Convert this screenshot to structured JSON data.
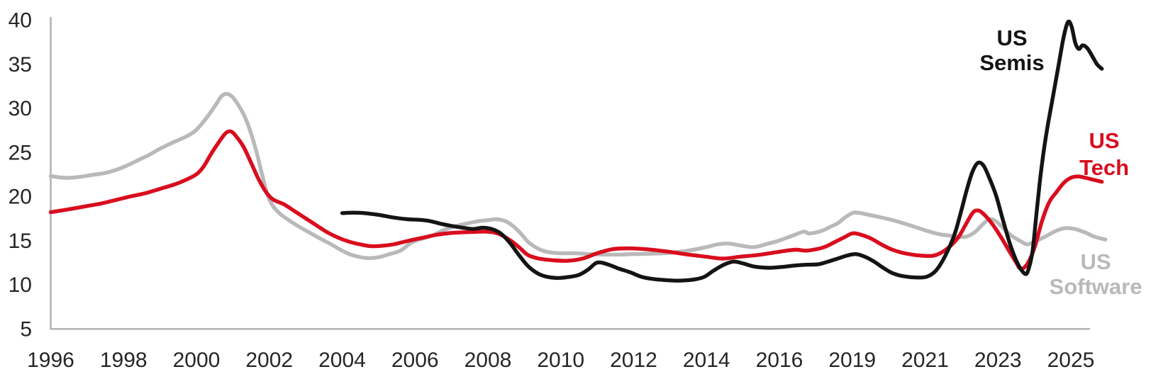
{
  "chart_data": {
    "type": "line",
    "title": "",
    "grid": false,
    "background_color": "#ffffff",
    "axis_color": "#a8a8a8",
    "tick_label_color": "#262626",
    "legend_position": "end-of-line inline labels",
    "x_axis": {
      "tick_labels": [
        "1996",
        "1998",
        "2000",
        "2002",
        "2004",
        "2006",
        "2008",
        "2010",
        "2012",
        "2014",
        "2016",
        "2019",
        "2021",
        "2023",
        "2025"
      ]
    },
    "y_axis": {
      "ticks": [
        40,
        35,
        30,
        25,
        20,
        15,
        10,
        5
      ],
      "min": 5,
      "max": 40.3
    },
    "series": [
      {
        "name": "US Software",
        "label_lines": [
          "US",
          "Software"
        ],
        "color": "#b9b9b9",
        "points": [
          [
            1996.0,
            22.3
          ],
          [
            1996.25,
            22.15
          ],
          [
            1996.5,
            22.1
          ],
          [
            1996.8,
            22.2
          ],
          [
            1997.1,
            22.4
          ],
          [
            1997.5,
            22.65
          ],
          [
            1997.8,
            23.0
          ],
          [
            1998.1,
            23.5
          ],
          [
            1998.4,
            24.1
          ],
          [
            1998.7,
            24.7
          ],
          [
            1999.0,
            25.4
          ],
          [
            1999.3,
            26.0
          ],
          [
            1999.6,
            26.55
          ],
          [
            1999.8,
            26.95
          ],
          [
            2000.0,
            27.55
          ],
          [
            2000.2,
            28.5
          ],
          [
            2000.4,
            29.6
          ],
          [
            2000.55,
            30.5
          ],
          [
            2000.7,
            31.4
          ],
          [
            2000.85,
            31.6
          ],
          [
            2001.0,
            31.2
          ],
          [
            2001.2,
            30.0
          ],
          [
            2001.35,
            28.8
          ],
          [
            2001.5,
            27.1
          ],
          [
            2001.65,
            25.0
          ],
          [
            2001.8,
            22.5
          ],
          [
            2001.95,
            20.15
          ],
          [
            2002.1,
            18.9
          ],
          [
            2002.3,
            18.0
          ],
          [
            2002.5,
            17.4
          ],
          [
            2002.8,
            16.6
          ],
          [
            2003.1,
            15.9
          ],
          [
            2003.4,
            15.2
          ],
          [
            2003.7,
            14.55
          ],
          [
            2003.95,
            13.95
          ],
          [
            2004.2,
            13.45
          ],
          [
            2004.45,
            13.15
          ],
          [
            2004.7,
            13.0
          ],
          [
            2005.0,
            13.1
          ],
          [
            2005.3,
            13.45
          ],
          [
            2005.6,
            13.85
          ],
          [
            2005.9,
            14.75
          ],
          [
            2006.2,
            15.2
          ],
          [
            2006.5,
            15.6
          ],
          [
            2006.8,
            16.2
          ],
          [
            2007.1,
            16.6
          ],
          [
            2007.4,
            16.9
          ],
          [
            2007.7,
            17.15
          ],
          [
            2008.0,
            17.3
          ],
          [
            2008.25,
            17.4
          ],
          [
            2008.5,
            17.15
          ],
          [
            2008.7,
            16.6
          ],
          [
            2008.9,
            15.8
          ],
          [
            2009.1,
            14.85
          ],
          [
            2009.3,
            14.25
          ],
          [
            2009.5,
            13.85
          ],
          [
            2009.7,
            13.65
          ],
          [
            2010.0,
            13.55
          ],
          [
            2010.4,
            13.55
          ],
          [
            2010.8,
            13.45
          ],
          [
            2011.2,
            13.4
          ],
          [
            2011.6,
            13.4
          ],
          [
            2012.0,
            13.45
          ],
          [
            2012.5,
            13.5
          ],
          [
            2013.0,
            13.6
          ],
          [
            2013.5,
            13.85
          ],
          [
            2014.0,
            14.25
          ],
          [
            2014.3,
            14.55
          ],
          [
            2014.6,
            14.65
          ],
          [
            2014.9,
            14.45
          ],
          [
            2015.3,
            14.25
          ],
          [
            2015.7,
            14.65
          ],
          [
            2016.0,
            15.0
          ],
          [
            2016.5,
            15.5
          ],
          [
            2017.0,
            16.0
          ],
          [
            2017.2,
            15.8
          ],
          [
            2017.5,
            15.9
          ],
          [
            2017.8,
            16.15
          ],
          [
            2018.1,
            16.55
          ],
          [
            2018.4,
            16.95
          ],
          [
            2018.7,
            17.6
          ],
          [
            2019.0,
            18.1
          ],
          [
            2019.15,
            18.15
          ],
          [
            2019.4,
            17.95
          ],
          [
            2019.8,
            17.6
          ],
          [
            2020.2,
            17.2
          ],
          [
            2020.6,
            16.7
          ],
          [
            2021.0,
            16.15
          ],
          [
            2021.4,
            15.7
          ],
          [
            2021.8,
            15.5
          ],
          [
            2022.1,
            15.4
          ],
          [
            2022.35,
            15.9
          ],
          [
            2022.6,
            16.9
          ],
          [
            2022.75,
            17.4
          ],
          [
            2022.9,
            17.3
          ],
          [
            2023.1,
            16.6
          ],
          [
            2023.35,
            15.6
          ],
          [
            2023.65,
            14.85
          ],
          [
            2023.8,
            14.55
          ],
          [
            2024.0,
            14.85
          ],
          [
            2024.3,
            15.45
          ],
          [
            2024.6,
            16.1
          ],
          [
            2024.85,
            16.4
          ],
          [
            2025.1,
            16.3
          ],
          [
            2025.4,
            15.9
          ],
          [
            2025.6,
            15.5
          ],
          [
            2025.8,
            15.25
          ],
          [
            2025.95,
            15.1
          ]
        ]
      },
      {
        "name": "US Tech",
        "label_lines": [
          "US",
          "Tech"
        ],
        "color": "#d90d1e",
        "points": [
          [
            1996.0,
            18.2
          ],
          [
            1996.3,
            18.4
          ],
          [
            1996.6,
            18.6
          ],
          [
            1997.0,
            18.9
          ],
          [
            1997.4,
            19.2
          ],
          [
            1997.8,
            19.6
          ],
          [
            1998.2,
            20.0
          ],
          [
            1998.6,
            20.35
          ],
          [
            1999.0,
            20.85
          ],
          [
            1999.4,
            21.35
          ],
          [
            1999.7,
            21.85
          ],
          [
            2000.0,
            22.5
          ],
          [
            2000.2,
            23.4
          ],
          [
            2000.4,
            24.8
          ],
          [
            2000.6,
            26.05
          ],
          [
            2000.8,
            27.15
          ],
          [
            2000.95,
            27.35
          ],
          [
            2001.1,
            26.75
          ],
          [
            2001.3,
            25.55
          ],
          [
            2001.5,
            23.8
          ],
          [
            2001.7,
            22.0
          ],
          [
            2001.9,
            20.55
          ],
          [
            2002.1,
            19.65
          ],
          [
            2002.4,
            19.1
          ],
          [
            2002.7,
            18.3
          ],
          [
            2003.0,
            17.5
          ],
          [
            2003.3,
            16.7
          ],
          [
            2003.6,
            15.9
          ],
          [
            2003.9,
            15.3
          ],
          [
            2004.2,
            14.85
          ],
          [
            2004.5,
            14.55
          ],
          [
            2004.8,
            14.35
          ],
          [
            2005.1,
            14.4
          ],
          [
            2005.4,
            14.55
          ],
          [
            2005.8,
            14.95
          ],
          [
            2006.2,
            15.3
          ],
          [
            2006.6,
            15.65
          ],
          [
            2007.0,
            15.85
          ],
          [
            2007.5,
            15.95
          ],
          [
            2008.0,
            16.0
          ],
          [
            2008.3,
            15.75
          ],
          [
            2008.6,
            15.05
          ],
          [
            2008.85,
            14.25
          ],
          [
            2009.1,
            13.35
          ],
          [
            2009.4,
            12.95
          ],
          [
            2009.8,
            12.75
          ],
          [
            2010.2,
            12.7
          ],
          [
            2010.6,
            12.95
          ],
          [
            2011.0,
            13.55
          ],
          [
            2011.4,
            14.0
          ],
          [
            2011.8,
            14.1
          ],
          [
            2012.2,
            14.05
          ],
          [
            2012.6,
            13.9
          ],
          [
            2013.0,
            13.7
          ],
          [
            2013.5,
            13.4
          ],
          [
            2014.0,
            13.15
          ],
          [
            2014.45,
            12.95
          ],
          [
            2014.9,
            13.15
          ],
          [
            2015.4,
            13.35
          ],
          [
            2015.9,
            13.65
          ],
          [
            2016.3,
            13.85
          ],
          [
            2016.7,
            13.95
          ],
          [
            2017.1,
            13.85
          ],
          [
            2017.5,
            14.0
          ],
          [
            2017.9,
            14.3
          ],
          [
            2018.3,
            14.85
          ],
          [
            2018.7,
            15.4
          ],
          [
            2019.0,
            15.8
          ],
          [
            2019.2,
            15.7
          ],
          [
            2019.5,
            15.25
          ],
          [
            2019.8,
            14.55
          ],
          [
            2020.1,
            13.95
          ],
          [
            2020.5,
            13.5
          ],
          [
            2021.0,
            13.25
          ],
          [
            2021.3,
            13.35
          ],
          [
            2021.6,
            14.05
          ],
          [
            2021.9,
            15.3
          ],
          [
            2022.1,
            16.7
          ],
          [
            2022.3,
            18.1
          ],
          [
            2022.42,
            18.4
          ],
          [
            2022.55,
            18.2
          ],
          [
            2022.8,
            17.1
          ],
          [
            2023.05,
            15.6
          ],
          [
            2023.3,
            13.85
          ],
          [
            2023.5,
            12.5
          ],
          [
            2023.62,
            11.8
          ],
          [
            2023.8,
            12.3
          ],
          [
            2024.0,
            14.15
          ],
          [
            2024.2,
            17.1
          ],
          [
            2024.4,
            19.3
          ],
          [
            2024.6,
            20.45
          ],
          [
            2024.8,
            21.5
          ],
          [
            2025.0,
            22.1
          ],
          [
            2025.2,
            22.25
          ],
          [
            2025.4,
            22.1
          ],
          [
            2025.6,
            21.9
          ],
          [
            2025.85,
            21.65
          ]
        ]
      },
      {
        "name": "US Semis",
        "label_lines": [
          "US",
          "Semis"
        ],
        "color": "#141414",
        "points": [
          [
            2004.0,
            18.1
          ],
          [
            2004.3,
            18.15
          ],
          [
            2004.6,
            18.1
          ],
          [
            2005.0,
            17.9
          ],
          [
            2005.4,
            17.6
          ],
          [
            2005.8,
            17.4
          ],
          [
            2006.1,
            17.35
          ],
          [
            2006.4,
            17.2
          ],
          [
            2006.7,
            16.9
          ],
          [
            2007.0,
            16.65
          ],
          [
            2007.3,
            16.45
          ],
          [
            2007.6,
            16.3
          ],
          [
            2007.85,
            16.45
          ],
          [
            2008.1,
            16.3
          ],
          [
            2008.35,
            15.8
          ],
          [
            2008.6,
            14.75
          ],
          [
            2008.85,
            13.35
          ],
          [
            2009.1,
            12.1
          ],
          [
            2009.35,
            11.3
          ],
          [
            2009.6,
            10.9
          ],
          [
            2009.9,
            10.75
          ],
          [
            2010.2,
            10.85
          ],
          [
            2010.5,
            11.1
          ],
          [
            2010.75,
            11.7
          ],
          [
            2010.95,
            12.4
          ],
          [
            2011.1,
            12.5
          ],
          [
            2011.35,
            12.2
          ],
          [
            2011.6,
            11.8
          ],
          [
            2011.9,
            11.4
          ],
          [
            2012.2,
            10.9
          ],
          [
            2012.5,
            10.65
          ],
          [
            2012.9,
            10.5
          ],
          [
            2013.3,
            10.45
          ],
          [
            2013.7,
            10.6
          ],
          [
            2013.95,
            10.9
          ],
          [
            2014.2,
            11.6
          ],
          [
            2014.5,
            12.3
          ],
          [
            2014.75,
            12.6
          ],
          [
            2015.0,
            12.4
          ],
          [
            2015.3,
            12.05
          ],
          [
            2015.7,
            11.9
          ],
          [
            2016.1,
            12.0
          ],
          [
            2016.6,
            12.15
          ],
          [
            2017.1,
            12.25
          ],
          [
            2017.6,
            12.3
          ],
          [
            2018.0,
            12.6
          ],
          [
            2018.4,
            12.95
          ],
          [
            2018.8,
            13.3
          ],
          [
            2019.1,
            13.45
          ],
          [
            2019.35,
            13.15
          ],
          [
            2019.6,
            12.6
          ],
          [
            2019.85,
            11.9
          ],
          [
            2020.1,
            11.3
          ],
          [
            2020.4,
            10.95
          ],
          [
            2020.75,
            10.8
          ],
          [
            2021.05,
            10.9
          ],
          [
            2021.3,
            11.6
          ],
          [
            2021.55,
            13.25
          ],
          [
            2021.8,
            15.6
          ],
          [
            2022.0,
            18.5
          ],
          [
            2022.15,
            20.85
          ],
          [
            2022.3,
            22.8
          ],
          [
            2022.45,
            23.8
          ],
          [
            2022.6,
            23.5
          ],
          [
            2022.75,
            22.2
          ],
          [
            2022.95,
            20.05
          ],
          [
            2023.15,
            17.1
          ],
          [
            2023.35,
            14.35
          ],
          [
            2023.55,
            12.3
          ],
          [
            2023.75,
            11.2
          ],
          [
            2023.85,
            11.9
          ],
          [
            2023.95,
            13.85
          ],
          [
            2024.05,
            17.8
          ],
          [
            2024.15,
            21.7
          ],
          [
            2024.25,
            25.0
          ],
          [
            2024.35,
            27.65
          ],
          [
            2024.5,
            31.1
          ],
          [
            2024.65,
            34.55
          ],
          [
            2024.8,
            38.0
          ],
          [
            2024.92,
            39.75
          ],
          [
            2025.02,
            39.25
          ],
          [
            2025.12,
            37.4
          ],
          [
            2025.22,
            36.7
          ],
          [
            2025.32,
            37.1
          ],
          [
            2025.45,
            36.8
          ],
          [
            2025.6,
            35.8
          ],
          [
            2025.72,
            34.95
          ],
          [
            2025.85,
            34.45
          ]
        ]
      }
    ],
    "series_end_values": {
      "US Semis": 34.5,
      "US Tech": 21.7,
      "US Software": 15.1
    }
  }
}
